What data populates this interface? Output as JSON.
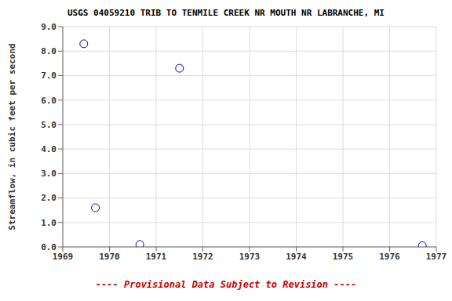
{
  "chart_data": {
    "type": "scatter",
    "title": "USGS 04059210 TRIB TO TENMILE CREEK NR MOUTH NR LABRANCHE, MI",
    "ylabel": "Streamflow, in cubic feet per second",
    "annotations": [
      {
        "text": "---- Provisional Data Subject to Revision ----",
        "color": "#cc0000"
      }
    ],
    "x": [
      1969.45,
      1969.7,
      1970.65,
      1971.5,
      1976.7
    ],
    "values": [
      8.3,
      1.6,
      0.1,
      7.3,
      0.05
    ],
    "color": "#0000cc",
    "marker": "circle",
    "xlim": [
      1969,
      1977
    ],
    "ylim": [
      0.0,
      9.0
    ],
    "xticks": [
      1969,
      1970,
      1971,
      1972,
      1973,
      1974,
      1975,
      1976,
      1977
    ],
    "yticks": [
      {
        "value": 0,
        "label": "0.0"
      },
      {
        "value": 1,
        "label": "1.0"
      },
      {
        "value": 2,
        "label": "2.0"
      },
      {
        "value": 3,
        "label": "3.0"
      },
      {
        "value": 4,
        "label": "4.0"
      },
      {
        "value": 5,
        "label": "5.0"
      },
      {
        "value": 6,
        "label": "6.0"
      },
      {
        "value": 7,
        "label": "7.0"
      },
      {
        "value": 8,
        "label": "8.0"
      },
      {
        "value": 9,
        "label": "9.0"
      }
    ],
    "grid": true
  }
}
